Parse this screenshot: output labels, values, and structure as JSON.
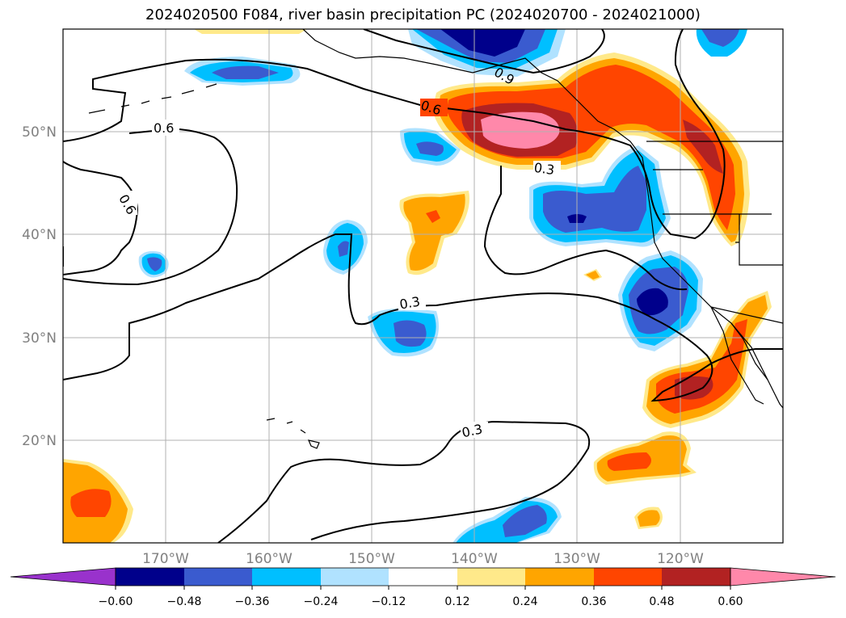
{
  "title": "2024020500 F084, river basin precipitation PC (2024020700 - 2024021000)",
  "map": {
    "lon_labels": [
      "170°W",
      "160°W",
      "150°W",
      "140°W",
      "130°W",
      "120°W"
    ],
    "lat_labels": [
      "50°N",
      "40°N",
      "30°N",
      "20°N"
    ],
    "contour_labels": [
      "0.6",
      "0.6",
      "0.6",
      "0.9",
      "0.3",
      "0.3",
      "0.3"
    ]
  },
  "colorbar": {
    "ticks": [
      "−0.60",
      "−0.48",
      "−0.36",
      "−0.24",
      "−0.12",
      "0.12",
      "0.24",
      "0.36",
      "0.48",
      "0.60"
    ],
    "colors": [
      "#9932cc",
      "#00008b",
      "#3a5bcf",
      "#00bfff",
      "#b0e2ff",
      "#ffffff",
      "#ffe98a",
      "#ffa500",
      "#ff4500",
      "#b22222",
      "#ff88aa"
    ]
  }
}
